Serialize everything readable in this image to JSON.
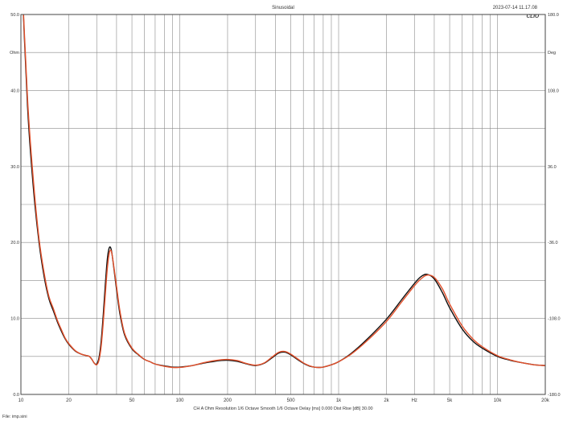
{
  "header": {
    "title": "Sinusoidal",
    "timestamp": "2023-07-14 11.17.08",
    "brand": "CLIO"
  },
  "footer": {
    "settings": "CH A   Ohm   Resolution 1/6 Octave   Smooth 1/6 Octave   Delay [ms] 0.000   Dist Rise [dB] 30.00",
    "file": "File: imp.sini"
  },
  "chart_data": {
    "type": "line",
    "title": "Sinusoidal",
    "xlabel": "Hz",
    "ylabel_left": "Ohm",
    "ylabel_right": "Deg",
    "xscale": "log",
    "xlim": [
      10,
      20000
    ],
    "ylim": [
      0,
      50
    ],
    "ylim_right": [
      -180,
      180
    ],
    "grid": true,
    "x_ticks": [
      {
        "value": 10,
        "label": "10"
      },
      {
        "value": 20,
        "label": "20"
      },
      {
        "value": 50,
        "label": "50"
      },
      {
        "value": 100,
        "label": "100"
      },
      {
        "value": 200,
        "label": "200"
      },
      {
        "value": 500,
        "label": "500"
      },
      {
        "value": 1000,
        "label": "1k"
      },
      {
        "value": 2000,
        "label": "2k"
      },
      {
        "value": 5000,
        "label": "5k"
      },
      {
        "value": 10000,
        "label": "10k"
      },
      {
        "value": 20000,
        "label": "20k"
      }
    ],
    "x_unit_label": {
      "value": 3000,
      "label": "Hz"
    },
    "y_ticks_left": [
      {
        "value": 0,
        "label": "0.0"
      },
      {
        "value": 10,
        "label": "10.0"
      },
      {
        "value": 20,
        "label": "20.0"
      },
      {
        "value": 30,
        "label": "30.0"
      },
      {
        "value": 40,
        "label": "40.0"
      },
      {
        "value": 50,
        "label": "50.0"
      }
    ],
    "y_unit_left": {
      "value": 45,
      "label": "Ohm"
    },
    "y_ticks_right": [
      {
        "value": -180,
        "label": "-180.0"
      },
      {
        "value": -108,
        "label": "-108.0"
      },
      {
        "value": -36,
        "label": "-36.0"
      },
      {
        "value": 36,
        "label": "36.0"
      },
      {
        "value": 108,
        "label": "108.0"
      },
      {
        "value": 180,
        "label": "180.0"
      }
    ],
    "y_unit_right": {
      "value": 144,
      "label": "Deg"
    },
    "series": [
      {
        "color": "#111111",
        "points": [
          [
            10,
            58
          ],
          [
            11,
            38
          ],
          [
            12,
            27
          ],
          [
            13,
            20
          ],
          [
            14,
            15.5
          ],
          [
            15,
            12.6
          ],
          [
            16,
            11
          ],
          [
            17,
            9.5
          ],
          [
            18,
            8.3
          ],
          [
            19,
            7.3
          ],
          [
            20,
            6.6
          ],
          [
            22,
            5.7
          ],
          [
            24,
            5.3
          ],
          [
            26,
            5.1
          ],
          [
            27,
            5.0
          ],
          [
            28,
            4.6
          ],
          [
            29,
            4.1
          ],
          [
            30,
            4.0
          ],
          [
            31,
            4.8
          ],
          [
            32,
            7.0
          ],
          [
            33,
            10.5
          ],
          [
            34,
            14.5
          ],
          [
            35,
            17.8
          ],
          [
            36,
            19.3
          ],
          [
            37,
            19.1
          ],
          [
            38,
            17.5
          ],
          [
            40,
            13.8
          ],
          [
            42,
            10.6
          ],
          [
            45,
            7.8
          ],
          [
            50,
            6.0
          ],
          [
            55,
            5.2
          ],
          [
            60,
            4.6
          ],
          [
            65,
            4.3
          ],
          [
            70,
            4.0
          ],
          [
            80,
            3.75
          ],
          [
            90,
            3.6
          ],
          [
            100,
            3.6
          ],
          [
            120,
            3.8
          ],
          [
            140,
            4.1
          ],
          [
            160,
            4.3
          ],
          [
            180,
            4.45
          ],
          [
            200,
            4.5
          ],
          [
            230,
            4.35
          ],
          [
            260,
            4.05
          ],
          [
            300,
            3.8
          ],
          [
            340,
            4.1
          ],
          [
            380,
            4.8
          ],
          [
            420,
            5.45
          ],
          [
            460,
            5.55
          ],
          [
            500,
            5.2
          ],
          [
            550,
            4.6
          ],
          [
            600,
            4.1
          ],
          [
            650,
            3.75
          ],
          [
            700,
            3.6
          ],
          [
            750,
            3.55
          ],
          [
            800,
            3.6
          ],
          [
            900,
            3.9
          ],
          [
            1000,
            4.3
          ],
          [
            1200,
            5.4
          ],
          [
            1500,
            7.2
          ],
          [
            2000,
            9.9
          ],
          [
            2500,
            12.5
          ],
          [
            3000,
            14.6
          ],
          [
            3300,
            15.5
          ],
          [
            3600,
            15.8
          ],
          [
            4000,
            15.2
          ],
          [
            4500,
            13.4
          ],
          [
            5000,
            11.4
          ],
          [
            6000,
            8.6
          ],
          [
            7000,
            7.0
          ],
          [
            8000,
            6.1
          ],
          [
            10000,
            5.0
          ],
          [
            12000,
            4.5
          ],
          [
            14000,
            4.2
          ],
          [
            17000,
            3.9
          ],
          [
            20000,
            3.8
          ]
        ]
      },
      {
        "color": "#e2502b",
        "points": [
          [
            10,
            58
          ],
          [
            11,
            39
          ],
          [
            12,
            28
          ],
          [
            13,
            20.5
          ],
          [
            14,
            16
          ],
          [
            15,
            12.9
          ],
          [
            16,
            11.3
          ],
          [
            17,
            9.7
          ],
          [
            18,
            8.5
          ],
          [
            19,
            7.4
          ],
          [
            20,
            6.7
          ],
          [
            22,
            5.75
          ],
          [
            24,
            5.3
          ],
          [
            26,
            5.1
          ],
          [
            27,
            5.0
          ],
          [
            28,
            4.6
          ],
          [
            29,
            4.1
          ],
          [
            30,
            3.9
          ],
          [
            31,
            4.5
          ],
          [
            32,
            6.3
          ],
          [
            33,
            9.5
          ],
          [
            34,
            13.2
          ],
          [
            35,
            16.6
          ],
          [
            36,
            18.6
          ],
          [
            37,
            18.9
          ],
          [
            38,
            17.6
          ],
          [
            40,
            14.2
          ],
          [
            42,
            11.0
          ],
          [
            45,
            8.0
          ],
          [
            50,
            6.1
          ],
          [
            55,
            5.25
          ],
          [
            60,
            4.6
          ],
          [
            65,
            4.3
          ],
          [
            70,
            4.0
          ],
          [
            80,
            3.7
          ],
          [
            90,
            3.55
          ],
          [
            100,
            3.55
          ],
          [
            120,
            3.8
          ],
          [
            140,
            4.15
          ],
          [
            160,
            4.4
          ],
          [
            180,
            4.55
          ],
          [
            200,
            4.6
          ],
          [
            230,
            4.45
          ],
          [
            260,
            4.1
          ],
          [
            300,
            3.85
          ],
          [
            340,
            4.15
          ],
          [
            380,
            4.9
          ],
          [
            420,
            5.55
          ],
          [
            460,
            5.65
          ],
          [
            500,
            5.3
          ],
          [
            550,
            4.7
          ],
          [
            600,
            4.15
          ],
          [
            650,
            3.8
          ],
          [
            700,
            3.6
          ],
          [
            750,
            3.55
          ],
          [
            800,
            3.6
          ],
          [
            900,
            3.9
          ],
          [
            1000,
            4.3
          ],
          [
            1200,
            5.3
          ],
          [
            1500,
            7.0
          ],
          [
            2000,
            9.6
          ],
          [
            2500,
            12.2
          ],
          [
            3000,
            14.3
          ],
          [
            3300,
            15.2
          ],
          [
            3600,
            15.7
          ],
          [
            4000,
            15.4
          ],
          [
            4500,
            13.9
          ],
          [
            5000,
            11.9
          ],
          [
            6000,
            9.0
          ],
          [
            7000,
            7.3
          ],
          [
            8000,
            6.3
          ],
          [
            10000,
            5.1
          ],
          [
            12000,
            4.55
          ],
          [
            14000,
            4.2
          ],
          [
            17000,
            3.9
          ],
          [
            20000,
            3.8
          ]
        ]
      }
    ]
  }
}
